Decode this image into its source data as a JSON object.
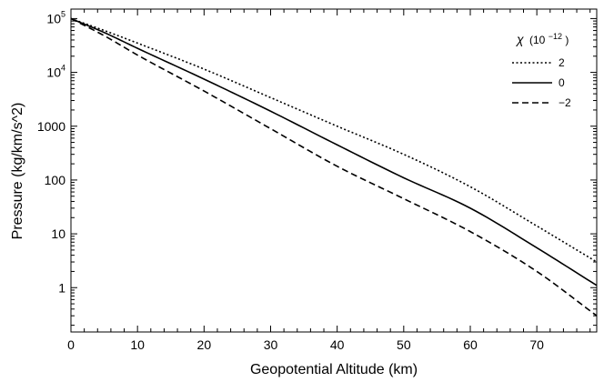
{
  "chart_data": {
    "type": "line",
    "xlabel": "Geopotential Altitude (km)",
    "ylabel": "Pressure (kg/km/s^2)",
    "xlim": [
      0,
      79
    ],
    "ylim": [
      0.15,
      150000
    ],
    "yscale": "log",
    "grid": false,
    "legend_placement": "top-right",
    "legend_title": {
      "symbol": "χ",
      "unit_base": "(10",
      "unit_exp": "−12",
      "unit_close": ")"
    },
    "x_ticks": [
      {
        "value": 0,
        "label": "0"
      },
      {
        "value": 10,
        "label": "10"
      },
      {
        "value": 20,
        "label": "20"
      },
      {
        "value": 30,
        "label": "30"
      },
      {
        "value": 40,
        "label": "40"
      },
      {
        "value": 50,
        "label": "50"
      },
      {
        "value": 60,
        "label": "60"
      },
      {
        "value": 70,
        "label": "70"
      }
    ],
    "y_ticks": [
      {
        "value": 1,
        "label": "1"
      },
      {
        "value": 10,
        "label": "10"
      },
      {
        "value": 100,
        "label": "100"
      },
      {
        "value": 1000,
        "label": "1000"
      },
      {
        "value": 10000,
        "label": "10",
        "exp": "4"
      },
      {
        "value": 100000,
        "label": "10",
        "exp": "5"
      }
    ],
    "series": [
      {
        "name": "2",
        "dash": "dotted",
        "points": [
          [
            0,
            100000
          ],
          [
            5,
            60000
          ],
          [
            10,
            35000
          ],
          [
            20,
            11500
          ],
          [
            30,
            3400
          ],
          [
            40,
            1000
          ],
          [
            50,
            300
          ],
          [
            60,
            75
          ],
          [
            70,
            14
          ],
          [
            79,
            3.0
          ]
        ]
      },
      {
        "name": "0",
        "dash": "solid",
        "points": [
          [
            0,
            100000
          ],
          [
            5,
            55000
          ],
          [
            10,
            28000
          ],
          [
            20,
            7500
          ],
          [
            30,
            1900
          ],
          [
            40,
            450
          ],
          [
            50,
            110
          ],
          [
            60,
            30
          ],
          [
            70,
            5.5
          ],
          [
            79,
            1.1
          ]
        ]
      },
      {
        "name": "−2",
        "dash": "dashed",
        "points": [
          [
            0,
            100000
          ],
          [
            5,
            48000
          ],
          [
            10,
            21000
          ],
          [
            20,
            4500
          ],
          [
            30,
            900
          ],
          [
            40,
            180
          ],
          [
            50,
            45
          ],
          [
            60,
            11
          ],
          [
            70,
            2.0
          ],
          [
            79,
            0.3
          ]
        ]
      }
    ]
  }
}
